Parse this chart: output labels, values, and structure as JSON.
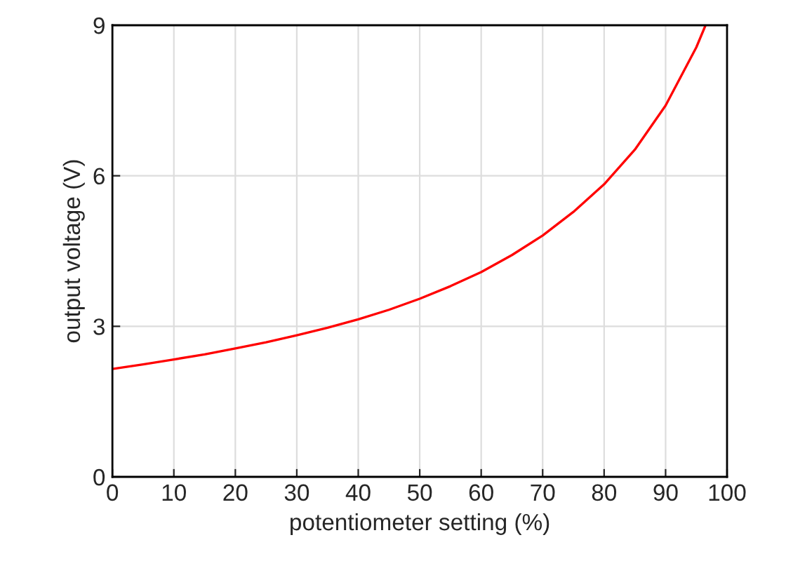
{
  "chart_data": {
    "type": "line",
    "xlabel": "potentiometer setting (%)",
    "ylabel": "output voltage (V)",
    "x": [
      0,
      5,
      10,
      15,
      20,
      25,
      30,
      35,
      40,
      45,
      50,
      55,
      60,
      65,
      70,
      75,
      80,
      85,
      90,
      95,
      96.5
    ],
    "series": [
      {
        "color": "#ff0000",
        "values": [
          2.15,
          2.24,
          2.34,
          2.44,
          2.56,
          2.68,
          2.82,
          2.97,
          3.14,
          3.33,
          3.55,
          3.8,
          4.08,
          4.42,
          4.81,
          5.28,
          5.83,
          6.52,
          7.4,
          8.56,
          9.0
        ]
      }
    ],
    "xlim": [
      0,
      100
    ],
    "xticks": [
      0,
      10,
      20,
      30,
      40,
      50,
      60,
      70,
      80,
      90,
      100
    ],
    "ylim": [
      0,
      9
    ],
    "yticks": [
      0,
      3,
      6,
      9
    ],
    "grid": true,
    "marker": "none",
    "line_style": "solid",
    "legend": false
  }
}
